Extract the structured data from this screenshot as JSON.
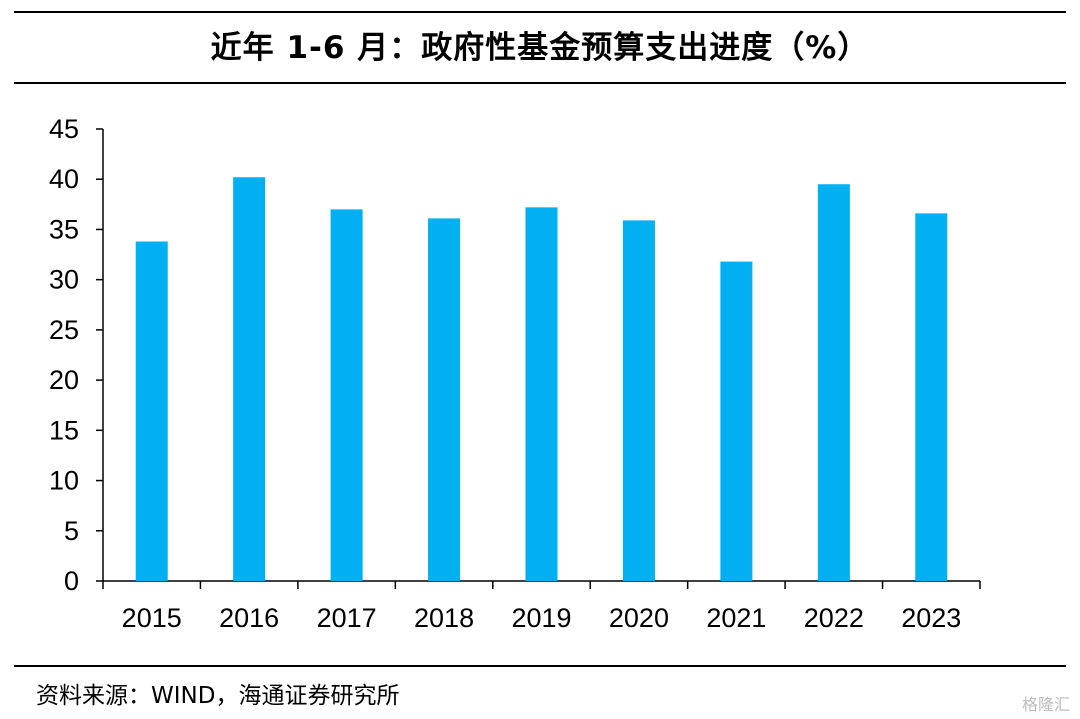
{
  "header": {
    "title": "近年 1-6 月：政府性基金预算支出进度（%）"
  },
  "footer": {
    "source": "资料来源：WIND，海通证券研究所",
    "watermark": "格隆汇"
  },
  "colors": {
    "bar": "#00B0F0",
    "axis": "#000000"
  },
  "chart_data": {
    "type": "bar",
    "title": "近年 1-6 月：政府性基金预算支出进度（%）",
    "categories": [
      "2015",
      "2016",
      "2017",
      "2018",
      "2019",
      "2020",
      "2021",
      "2022",
      "2023"
    ],
    "values": [
      33.8,
      40.2,
      37.0,
      36.1,
      37.2,
      35.9,
      31.8,
      39.5,
      36.6
    ],
    "ylim": [
      0,
      45
    ],
    "yticks": [
      0,
      5,
      10,
      15,
      20,
      25,
      30,
      35,
      40,
      45
    ],
    "xlabel": "",
    "ylabel": "",
    "grid": false,
    "legend": "none"
  }
}
